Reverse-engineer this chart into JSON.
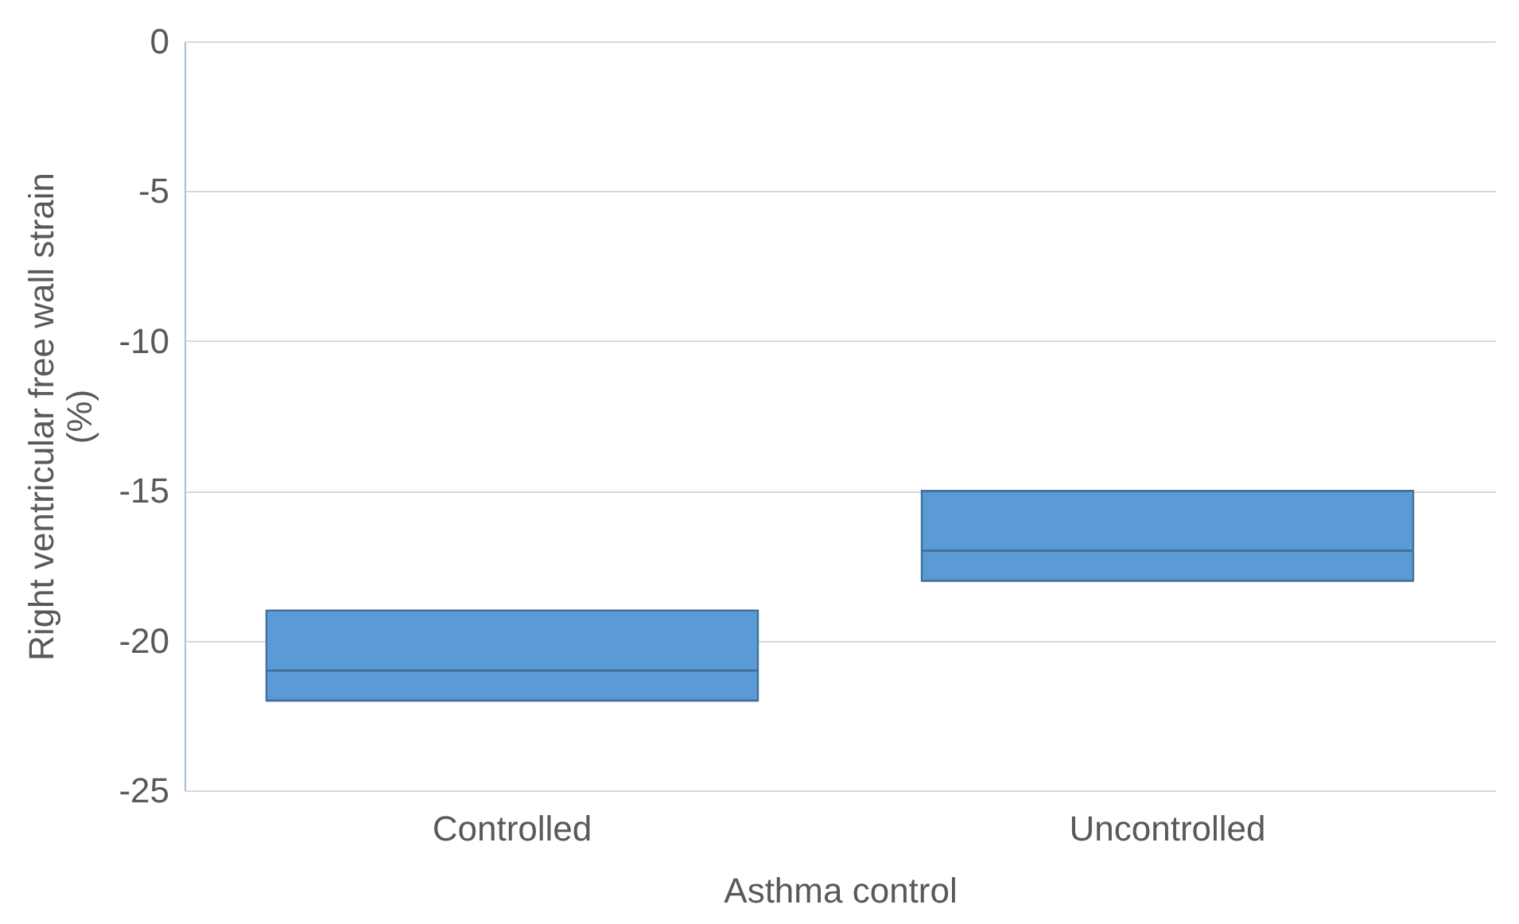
{
  "chart_data": {
    "type": "box",
    "xlabel": "Asthma control",
    "ylabel": "Right ventricular free wall strain (%)",
    "categories": [
      "Controlled",
      "Uncontrolled"
    ],
    "boxes": [
      {
        "low": -22,
        "q1": -22,
        "median": -21,
        "q3": -19,
        "high": -19
      },
      {
        "low": -18,
        "q1": -18,
        "median": -17,
        "q3": -15,
        "high": -15
      }
    ],
    "color": "#5b9bd5",
    "ylim": [
      -25,
      0
    ],
    "yticks": [
      -25,
      -20,
      -15,
      -10,
      -5,
      0
    ],
    "grid": "y"
  }
}
